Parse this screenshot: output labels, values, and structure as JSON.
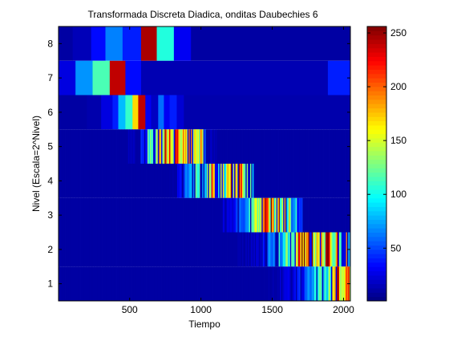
{
  "chart_data": {
    "type": "heatmap",
    "title": "Transformada Discreta Diadica, onditas Daubechies 6",
    "xlabel": "Tiempo",
    "ylabel": "Nivel (Escala=2^Nivel)",
    "xlim": [
      1,
      2048
    ],
    "ylim": [
      0.5,
      8.5
    ],
    "x_ticks": [
      500,
      1000,
      1500,
      2000
    ],
    "y_ticks": [
      1,
      2,
      3,
      4,
      5,
      6,
      7,
      8
    ],
    "colormap": "jet",
    "colorbar": {
      "range": [
        1,
        256
      ],
      "ticks": [
        50,
        100,
        150,
        200,
        250
      ]
    },
    "grid": false,
    "rows": [
      {
        "level": 8,
        "segments": [
          [
            1,
            100,
            10
          ],
          [
            100,
            230,
            15
          ],
          [
            230,
            330,
            35
          ],
          [
            330,
            450,
            65
          ],
          [
            450,
            580,
            40
          ],
          [
            580,
            690,
            245
          ],
          [
            690,
            810,
            105
          ],
          [
            810,
            930,
            30
          ],
          [
            930,
            2048,
            10
          ]
        ]
      },
      {
        "level": 7,
        "segments": [
          [
            1,
            120,
            25
          ],
          [
            120,
            240,
            70
          ],
          [
            240,
            360,
            115
          ],
          [
            360,
            470,
            240
          ],
          [
            470,
            580,
            35
          ],
          [
            580,
            1890,
            14
          ],
          [
            1890,
            2048,
            40
          ]
        ]
      },
      {
        "level": 6,
        "segments": [
          [
            1,
            200,
            10
          ],
          [
            200,
            300,
            12
          ],
          [
            300,
            380,
            25
          ],
          [
            380,
            420,
            40
          ],
          [
            420,
            470,
            80
          ],
          [
            470,
            520,
            110
          ],
          [
            520,
            560,
            170
          ],
          [
            560,
            610,
            240
          ],
          [
            610,
            650,
            30
          ],
          [
            650,
            700,
            18
          ],
          [
            700,
            740,
            60
          ],
          [
            740,
            780,
            30
          ],
          [
            780,
            830,
            40
          ],
          [
            830,
            880,
            22
          ],
          [
            880,
            2048,
            12
          ]
        ]
      },
      {
        "level": 5,
        "peaks": [
          [
            520,
            15
          ],
          [
            560,
            10
          ],
          [
            600,
            40
          ],
          [
            650,
            150
          ],
          [
            690,
            175
          ],
          [
            720,
            215
          ],
          [
            760,
            230
          ],
          [
            790,
            195
          ],
          [
            830,
            240
          ],
          [
            860,
            155
          ],
          [
            890,
            225
          ],
          [
            920,
            175
          ],
          [
            950,
            205
          ],
          [
            980,
            135
          ],
          [
            1010,
            165
          ],
          [
            1040,
            70
          ],
          [
            1080,
            20
          ]
        ]
      },
      {
        "level": 4,
        "peaks": [
          [
            800,
            10
          ],
          [
            860,
            30
          ],
          [
            900,
            60
          ],
          [
            940,
            90
          ],
          [
            980,
            105
          ],
          [
            1020,
            95
          ],
          [
            1060,
            150
          ],
          [
            1080,
            230
          ],
          [
            1100,
            195
          ],
          [
            1130,
            175
          ],
          [
            1150,
            225
          ],
          [
            1170,
            135
          ],
          [
            1200,
            200
          ],
          [
            1220,
            230
          ],
          [
            1250,
            165
          ],
          [
            1280,
            210
          ],
          [
            1300,
            175
          ],
          [
            1330,
            135
          ],
          [
            1350,
            105
          ]
        ]
      },
      {
        "level": 3,
        "peaks": [
          [
            1100,
            10
          ],
          [
            1200,
            25
          ],
          [
            1250,
            45
          ],
          [
            1300,
            75
          ],
          [
            1340,
            110
          ],
          [
            1380,
            140
          ],
          [
            1420,
            170
          ],
          [
            1440,
            215
          ],
          [
            1460,
            240
          ],
          [
            1480,
            185
          ],
          [
            1500,
            225
          ],
          [
            1520,
            160
          ],
          [
            1540,
            205
          ],
          [
            1560,
            130
          ],
          [
            1580,
            185
          ],
          [
            1600,
            100
          ],
          [
            1620,
            150
          ],
          [
            1640,
            70
          ],
          [
            1660,
            110
          ],
          [
            1680,
            45
          ]
        ]
      },
      {
        "level": 2,
        "peaks": [
          [
            1300,
            15
          ],
          [
            1400,
            25
          ],
          [
            1450,
            45
          ],
          [
            1500,
            70
          ],
          [
            1550,
            100
          ],
          [
            1600,
            135
          ],
          [
            1640,
            160
          ],
          [
            1680,
            200
          ],
          [
            1710,
            240
          ],
          [
            1740,
            215
          ],
          [
            1770,
            245
          ],
          [
            1800,
            200
          ],
          [
            1830,
            230
          ],
          [
            1860,
            185
          ],
          [
            1890,
            220
          ],
          [
            1920,
            160
          ],
          [
            1950,
            200
          ],
          [
            1980,
            130
          ],
          [
            2010,
            175
          ],
          [
            2040,
            90
          ]
        ]
      },
      {
        "level": 1,
        "peaks": [
          [
            1500,
            12
          ],
          [
            1600,
            25
          ],
          [
            1700,
            40
          ],
          [
            1750,
            70
          ],
          [
            1800,
            95
          ],
          [
            1850,
            120
          ],
          [
            1880,
            100
          ],
          [
            1910,
            145
          ],
          [
            1940,
            175
          ],
          [
            1970,
            210
          ],
          [
            1990,
            170
          ],
          [
            2010,
            235
          ],
          [
            2030,
            195
          ],
          [
            2048,
            145
          ]
        ]
      }
    ]
  }
}
